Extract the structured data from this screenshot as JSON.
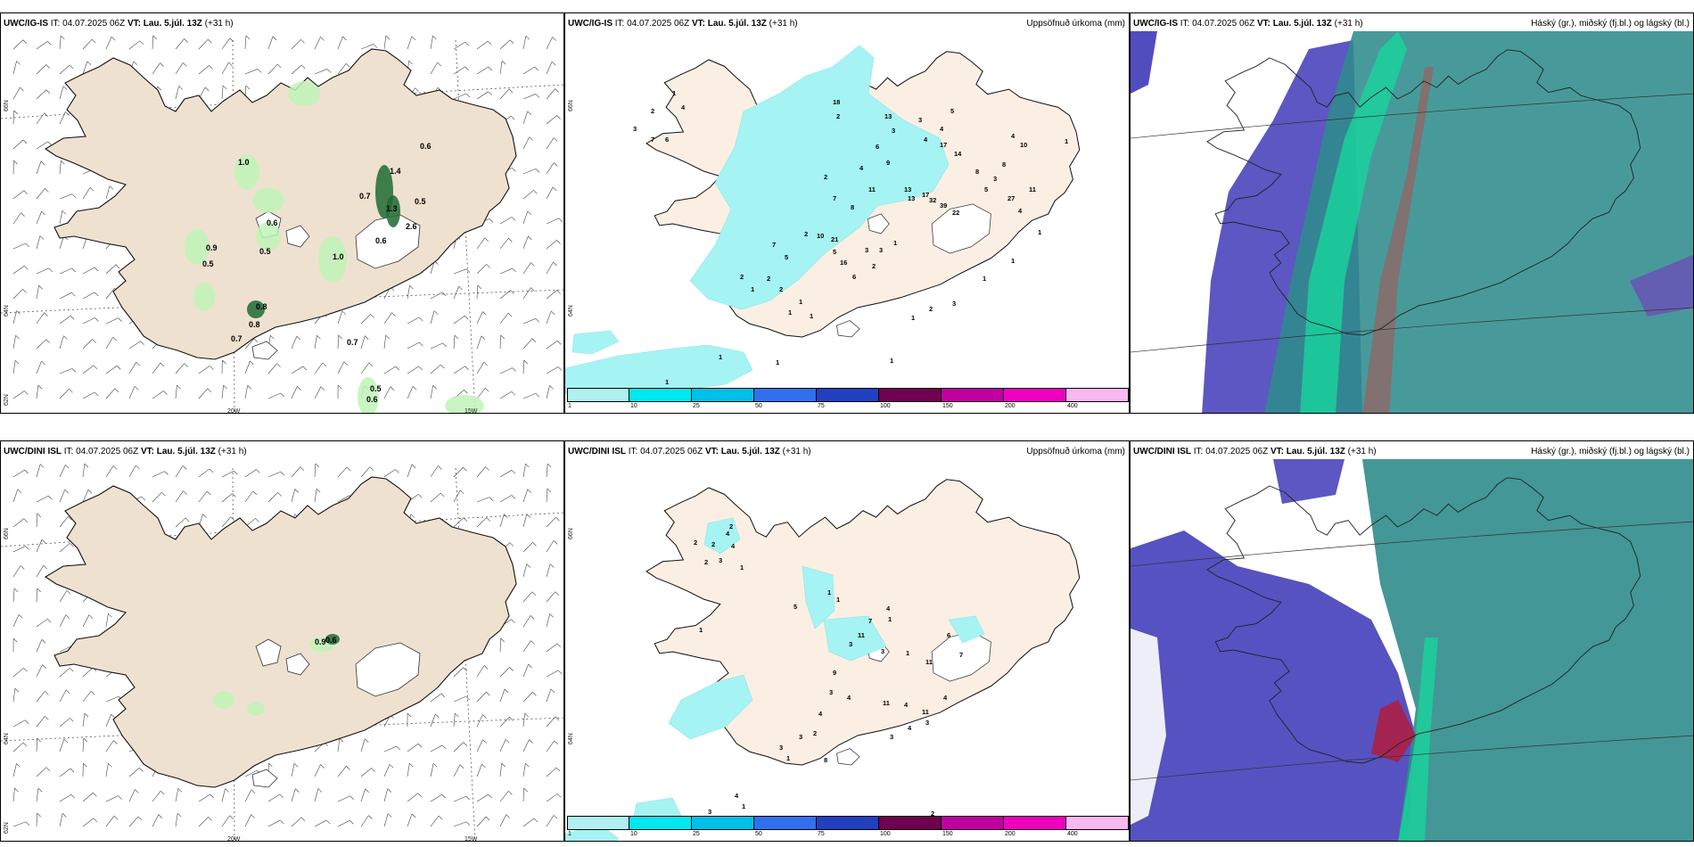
{
  "panels": [
    {
      "row": "top",
      "type": "wind",
      "hdr": {
        "model": "UWC/IG-IS",
        "it": "IT: 04.07.2025 06Z",
        "vt": "VT: Lau. 5.júl. 13Z",
        "lead": "(+31 h)"
      },
      "ticks": {
        "lat1": "66N",
        "lat2": "64N",
        "lat3": "62N",
        "lon1": "20W",
        "lon2": "15W"
      },
      "values": [
        "1.0",
        "0.6",
        "1.4",
        "0.7",
        "1.3",
        "0.5",
        "0.6",
        "2.6",
        "0.9",
        "0.6",
        "0.5",
        "0.5",
        "1.0",
        "0.8",
        "0.8",
        "0.7",
        "0.7",
        "0.5",
        "0.6"
      ]
    },
    {
      "row": "top",
      "type": "precip",
      "hdr": {
        "model": "UWC/IG-IS",
        "it": "IT: 04.07.2025 06Z",
        "vt": "VT: Lau. 5.júl. 13Z",
        "lead": "(+31 h)",
        "right": "Uppsöfnuð úrkoma (mm)"
      },
      "ticks": {
        "lat1": "66N",
        "lat2": "64N"
      },
      "values": [
        "1",
        "2",
        "4",
        "3",
        "7",
        "6",
        "18",
        "2",
        "13",
        "3",
        "3",
        "5",
        "4",
        "4",
        "17",
        "14",
        "8",
        "5",
        "3",
        "4",
        "10",
        "8",
        "27",
        "4",
        "11",
        "6",
        "9",
        "4",
        "2",
        "7",
        "8",
        "11",
        "13",
        "17",
        "32",
        "39",
        "22",
        "13",
        "2",
        "10",
        "21",
        "5",
        "16",
        "6",
        "3",
        "3",
        "2",
        "1",
        "7",
        "5",
        "2",
        "2",
        "1",
        "1",
        "1",
        "2",
        "1",
        "1",
        "1",
        "1",
        "1",
        "2",
        "1",
        "1",
        "2",
        "3",
        "1",
        "1",
        "1",
        "1"
      ]
    },
    {
      "row": "top",
      "type": "cloud",
      "hdr": {
        "model": "UWC/IG-IS",
        "it": "IT: 04.07.2025 06Z",
        "vt": "VT: Lau. 5.júl. 13Z",
        "lead": "(+31 h)",
        "right": "Háský (gr.), miðský (fj.bl.) og lágský (bl.)"
      }
    },
    {
      "row": "bottom",
      "type": "wind",
      "hdr": {
        "model": "UWC/DINI ISL",
        "it": "IT: 04.07.2025 06Z",
        "vt": "VT: Lau. 5.júl. 13Z",
        "lead": "(+31 h)"
      },
      "ticks": {
        "lat1": "66N",
        "lat2": "64N",
        "lat3": "62N",
        "lon1": "20W",
        "lon2": "15W"
      },
      "values": [
        "0.9",
        "0.6"
      ]
    },
    {
      "row": "bottom",
      "type": "precip",
      "hdr": {
        "model": "UWC/DINI ISL",
        "it": "IT: 04.07.2025 06Z",
        "vt": "VT: Lau. 5.júl. 13Z",
        "lead": "(+31 h)",
        "right": "Uppsöfnuð úrkoma (mm)"
      },
      "ticks": {
        "lat1": "66N",
        "lat2": "64N"
      },
      "values": [
        "2",
        "2",
        "4",
        "4",
        "3",
        "2",
        "2",
        "1",
        "1",
        "5",
        "1",
        "1",
        "4",
        "7",
        "11",
        "1",
        "3",
        "3",
        "1",
        "11",
        "6",
        "7",
        "9",
        "3",
        "4",
        "4",
        "2",
        "3",
        "3",
        "1",
        "8",
        "11",
        "4",
        "11",
        "4",
        "3",
        "4",
        "3",
        "4",
        "3",
        "1",
        "1",
        "2",
        "4",
        "3",
        "2",
        "1",
        "2",
        "1",
        "1",
        "1",
        "1",
        "1",
        "1"
      ]
    },
    {
      "row": "bottom",
      "type": "cloud",
      "hdr": {
        "model": "UWC/DINI ISL",
        "it": "IT: 04.07.2025 06Z",
        "vt": "VT: Lau. 5.júl. 13Z",
        "lead": "(+31 h)",
        "right": "Háský (gr.), miðský (fj.bl.) og lágský (bl.)"
      }
    }
  ],
  "legend": {
    "labels": [
      "1",
      "10",
      "25",
      "50",
      "75",
      "100",
      "150",
      "200",
      "400"
    ],
    "colors": [
      "#b0f0f0",
      "#00e8f0",
      "#00c0e8",
      "#3070f0",
      "#2040c0",
      "#700050",
      "#c000a0",
      "#f000c0",
      "#f8b8f0"
    ]
  },
  "colors": {
    "land": "#efe1cf",
    "precip_land": "#fbefe4",
    "precip_cyan": "#a6f3f3",
    "green_light": "#bff3b7",
    "green_dark": "#1f6a35",
    "cloud_low": "#3f3ab8",
    "cloud_mid": "#2f8c8c",
    "cloud_high": "#18d49c"
  }
}
